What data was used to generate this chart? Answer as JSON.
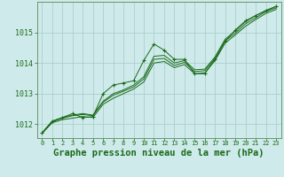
{
  "title": "Graphe pression niveau de la mer (hPa)",
  "background_color": "#ceeaea",
  "line_color": "#1a6b1a",
  "grid_color": "#a8caca",
  "x_ticks": [
    0,
    1,
    2,
    3,
    4,
    5,
    6,
    7,
    8,
    9,
    10,
    11,
    12,
    13,
    14,
    15,
    16,
    17,
    18,
    19,
    20,
    21,
    22,
    23
  ],
  "y_ticks": [
    1012,
    1013,
    1014,
    1015
  ],
  "ylim": [
    1011.55,
    1016.0
  ],
  "xlim": [
    -0.5,
    23.5
  ],
  "smooth_line1": [
    1011.7,
    1012.05,
    1012.15,
    1012.2,
    1012.25,
    1012.22,
    1012.65,
    1012.85,
    1013.0,
    1013.15,
    1013.38,
    1014.0,
    1014.05,
    1013.85,
    1013.95,
    1013.65,
    1013.68,
    1014.08,
    1014.65,
    1014.92,
    1015.2,
    1015.42,
    1015.62,
    1015.75
  ],
  "smooth_line2": [
    1011.7,
    1012.08,
    1012.2,
    1012.28,
    1012.32,
    1012.28,
    1012.72,
    1012.95,
    1013.08,
    1013.22,
    1013.48,
    1014.12,
    1014.15,
    1013.92,
    1014.02,
    1013.72,
    1013.75,
    1014.15,
    1014.72,
    1014.98,
    1015.28,
    1015.48,
    1015.68,
    1015.8
  ],
  "smooth_line3": [
    1011.72,
    1012.1,
    1012.22,
    1012.3,
    1012.35,
    1012.3,
    1012.75,
    1013.0,
    1013.12,
    1013.28,
    1013.55,
    1014.22,
    1014.25,
    1014.0,
    1014.08,
    1013.78,
    1013.8,
    1014.2,
    1014.78,
    1015.05,
    1015.35,
    1015.55,
    1015.72,
    1015.85
  ],
  "marker_line": [
    1011.72,
    1012.1,
    1012.22,
    1012.35,
    1012.22,
    1012.25,
    1013.0,
    1013.28,
    1013.35,
    1013.42,
    1014.08,
    1014.62,
    1014.42,
    1014.12,
    1014.12,
    1013.65,
    1013.65,
    1014.12,
    1014.72,
    1015.08,
    1015.38,
    1015.55,
    1015.7,
    1015.85
  ],
  "xlabel_fontsize": 7.5
}
